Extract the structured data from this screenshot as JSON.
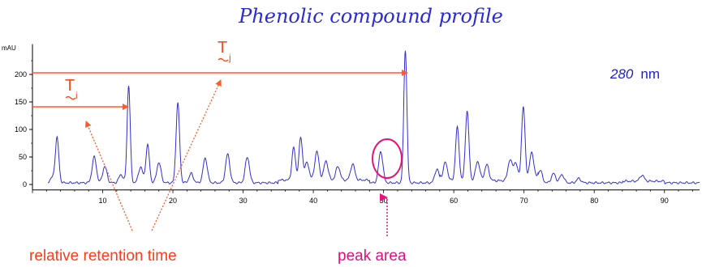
{
  "chart_data": {
    "type": "line",
    "title": "Phenolic compound profile",
    "ylabel": "mAU",
    "xlabel": "",
    "wavelength_value": "280",
    "wavelength_unit": "nm",
    "xlim": [
      0,
      95
    ],
    "ylim": [
      -10,
      255
    ],
    "x_ticks": [
      10,
      20,
      30,
      40,
      50,
      60,
      70,
      80,
      90
    ],
    "y_ticks": [
      0,
      50,
      100,
      150,
      200
    ],
    "baseline": 3,
    "peaks": [
      {
        "x": 2.8,
        "y": 12
      },
      {
        "x": 3.5,
        "y": 85
      },
      {
        "x": 8.8,
        "y": 50
      },
      {
        "x": 10.3,
        "y": 33
      },
      {
        "x": 12.6,
        "y": 18
      },
      {
        "x": 13.7,
        "y": 180
      },
      {
        "x": 15.4,
        "y": 32
      },
      {
        "x": 16.4,
        "y": 72
      },
      {
        "x": 18.0,
        "y": 40
      },
      {
        "x": 20.7,
        "y": 148
      },
      {
        "x": 22.6,
        "y": 20
      },
      {
        "x": 24.6,
        "y": 48
      },
      {
        "x": 27.8,
        "y": 55
      },
      {
        "x": 30.6,
        "y": 50
      },
      {
        "x": 37.2,
        "y": 62
      },
      {
        "x": 38.2,
        "y": 80
      },
      {
        "x": 39.1,
        "y": 35
      },
      {
        "x": 40.5,
        "y": 55
      },
      {
        "x": 41.8,
        "y": 38
      },
      {
        "x": 43.5,
        "y": 28
      },
      {
        "x": 45.6,
        "y": 32
      },
      {
        "x": 49.6,
        "y": 60
      },
      {
        "x": 53.1,
        "y": 245
      },
      {
        "x": 57.6,
        "y": 28
      },
      {
        "x": 58.8,
        "y": 36
      },
      {
        "x": 60.5,
        "y": 100
      },
      {
        "x": 61.9,
        "y": 130
      },
      {
        "x": 63.4,
        "y": 38
      },
      {
        "x": 64.7,
        "y": 32
      },
      {
        "x": 68.0,
        "y": 40
      },
      {
        "x": 68.8,
        "y": 35
      },
      {
        "x": 69.9,
        "y": 137
      },
      {
        "x": 71.1,
        "y": 55
      },
      {
        "x": 72.3,
        "y": 26
      },
      {
        "x": 74.2,
        "y": 20
      },
      {
        "x": 75.4,
        "y": 18
      },
      {
        "x": 77.8,
        "y": 11
      },
      {
        "x": 86.8,
        "y": 14
      }
    ]
  },
  "annotations": {
    "ti_main": "T",
    "ti_sub": "i",
    "tj_main": "T",
    "tj_sub": "j",
    "relative_retention_time": "relative retention time",
    "peak_area": "peak area"
  },
  "colors": {
    "trace": "#3030d0",
    "arrow": "#ff5a28",
    "circle": "#e8127a",
    "title": "#2a2ad6"
  }
}
